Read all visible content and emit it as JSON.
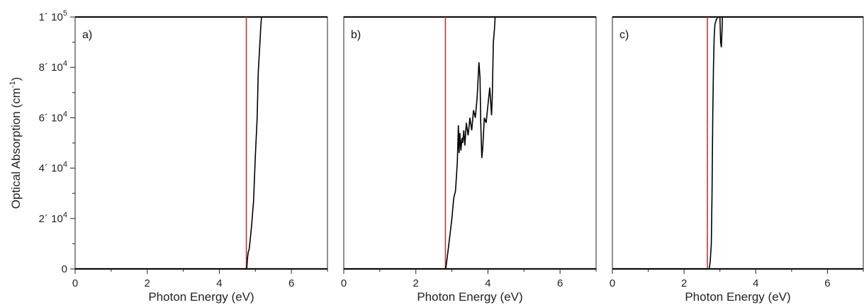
{
  "chart_data": [
    {
      "type": "line",
      "panel_label": "a)",
      "xlabel": "Photon Energy (eV)",
      "ylabel": "Optical Absorption (cm^-1)",
      "xlim": [
        0,
        7
      ],
      "ylim": [
        0,
        100000
      ],
      "x_ticks": [
        0,
        2,
        4,
        6
      ],
      "y_ticks": [
        {
          "value": 0,
          "label": "0"
        },
        {
          "value": 20000,
          "mantissa": "2´ 10",
          "exp": "4"
        },
        {
          "value": 40000,
          "mantissa": "4´ 10",
          "exp": "4"
        },
        {
          "value": 60000,
          "mantissa": "6´ 10",
          "exp": "4"
        },
        {
          "value": 80000,
          "mantissa": "8´ 10",
          "exp": "4"
        },
        {
          "value": 100000,
          "mantissa": "1´ 10",
          "exp": "5"
        }
      ],
      "vline": {
        "x": 4.75,
        "color": "#c0392b"
      },
      "series": [
        {
          "color": "#000000",
          "x": [
            0,
            4.76,
            4.78,
            4.8,
            4.83,
            4.86,
            4.9,
            4.95,
            5.0,
            5.05,
            5.08,
            5.12,
            5.15,
            5.17
          ],
          "y": [
            0,
            0,
            4000,
            6500,
            8000,
            12000,
            18000,
            27000,
            45000,
            60000,
            78000,
            88000,
            96000,
            100000
          ]
        }
      ]
    },
    {
      "type": "line",
      "panel_label": "b)",
      "xlabel": "Photon Energy (eV)",
      "xlim": [
        0,
        7
      ],
      "ylim": [
        0,
        100000
      ],
      "x_ticks": [
        0,
        2,
        4,
        6
      ],
      "vline": {
        "x": 2.82,
        "color": "#c0392b"
      },
      "series": [
        {
          "color": "#000000",
          "x": [
            0,
            2.83,
            2.9,
            3.0,
            3.05,
            3.1,
            3.15,
            3.18,
            3.2,
            3.22,
            3.25,
            3.28,
            3.3,
            3.33,
            3.36,
            3.4,
            3.45,
            3.5,
            3.55,
            3.6,
            3.65,
            3.7,
            3.75,
            3.78,
            3.8,
            3.83,
            3.86,
            3.9,
            3.95,
            4.0,
            4.05,
            4.1,
            4.12,
            4.15,
            4.18,
            4.2
          ],
          "y": [
            0,
            0,
            8000,
            20000,
            28000,
            31000,
            42000,
            57000,
            46000,
            54000,
            47000,
            52000,
            50000,
            55000,
            49000,
            58000,
            53000,
            60000,
            55000,
            63000,
            60000,
            68000,
            82000,
            76000,
            58000,
            44000,
            49000,
            60000,
            58000,
            65000,
            72000,
            61000,
            68000,
            90000,
            95000,
            100000
          ]
        }
      ]
    },
    {
      "type": "line",
      "panel_label": "c)",
      "xlabel": "Photon Energy (eV)",
      "xlim": [
        0,
        7
      ],
      "ylim": [
        0,
        100000
      ],
      "x_ticks": [
        0,
        2,
        4,
        6
      ],
      "vline": {
        "x": 2.65,
        "color": "#c0392b"
      },
      "series": [
        {
          "color": "#000000",
          "x": [
            0,
            2.7,
            2.73,
            2.76,
            2.78,
            2.8,
            2.82,
            2.84,
            2.86,
            2.9,
            2.95,
            3.0,
            3.02,
            3.04,
            3.06,
            3.07
          ],
          "y": [
            0,
            0,
            3000,
            10000,
            30000,
            60000,
            80000,
            92000,
            97000,
            99000,
            100000,
            100000,
            90000,
            88000,
            95000,
            100000
          ]
        }
      ]
    }
  ]
}
